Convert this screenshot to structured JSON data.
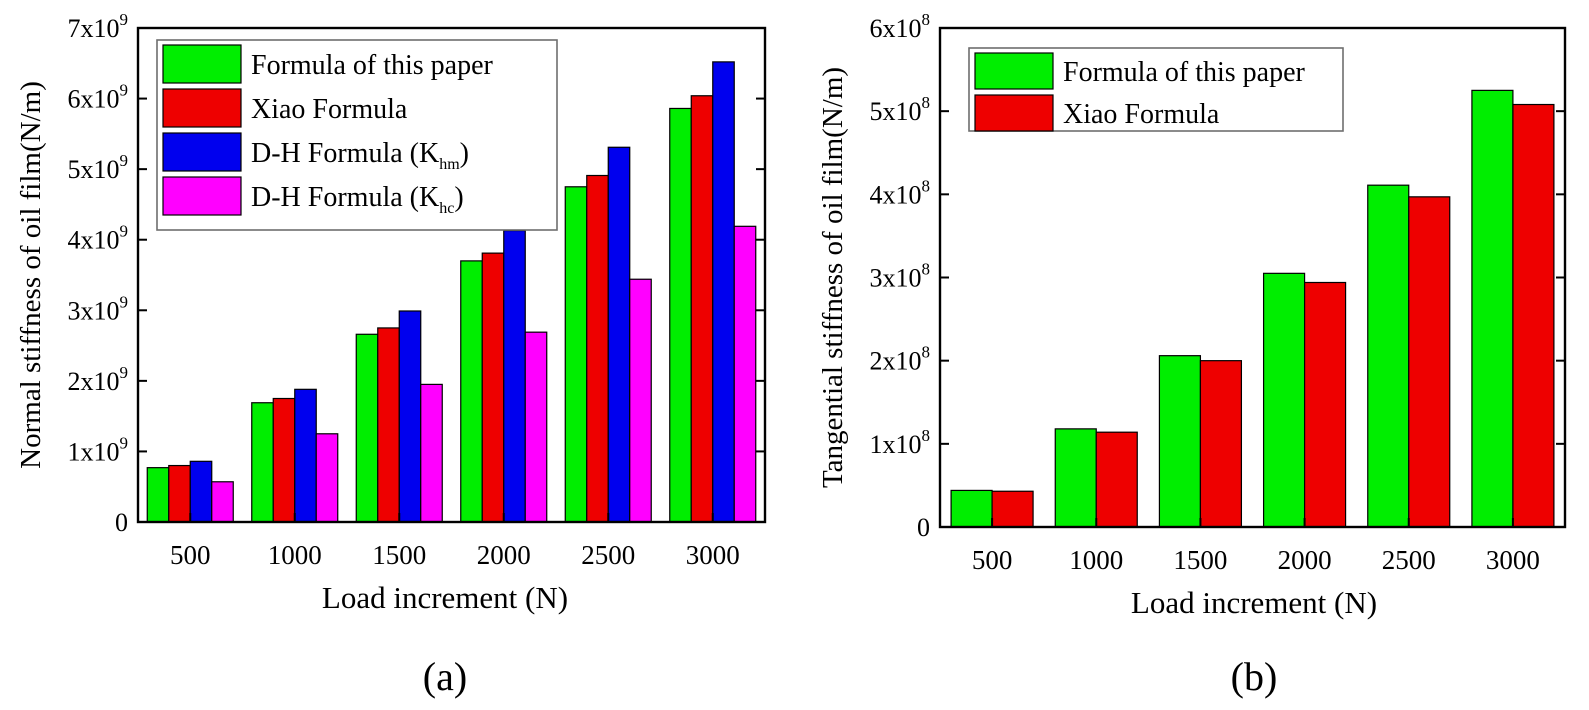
{
  "chart_data": [
    {
      "id": "a",
      "type": "bar",
      "panel_label": "(a)",
      "xlabel": "Load increment (N)",
      "ylabel": "Normal stiffness of oil film(N/m)",
      "categories": [
        "500",
        "1000",
        "1500",
        "2000",
        "2500",
        "3000"
      ],
      "ylim": [
        0,
        7000000000
      ],
      "yticks": [
        {
          "value": 0,
          "mantissa": "0",
          "exp": ""
        },
        {
          "value": 1000000000,
          "mantissa": "1x10",
          "exp": "9"
        },
        {
          "value": 2000000000,
          "mantissa": "2x10",
          "exp": "9"
        },
        {
          "value": 3000000000,
          "mantissa": "3x10",
          "exp": "9"
        },
        {
          "value": 4000000000,
          "mantissa": "4x10",
          "exp": "9"
        },
        {
          "value": 5000000000,
          "mantissa": "5x10",
          "exp": "9"
        },
        {
          "value": 6000000000,
          "mantissa": "6x10",
          "exp": "9"
        },
        {
          "value": 7000000000,
          "mantissa": "7x10",
          "exp": "9"
        }
      ],
      "series": [
        {
          "name": "Formula of this paper",
          "label_main": "Formula of this paper",
          "label_sub": "",
          "label_end": "",
          "color": "#00ee00",
          "values": [
            770000000,
            1690000000,
            2660000000,
            3700000000,
            4750000000,
            5860000000
          ]
        },
        {
          "name": "Xiao Formula",
          "label_main": "Xiao Formula",
          "label_sub": "",
          "label_end": "",
          "color": "#ee0000",
          "values": [
            800000000,
            1750000000,
            2750000000,
            3810000000,
            4910000000,
            6040000000
          ]
        },
        {
          "name": "D-H Formula (Khm)",
          "label_main": "D-H Formula (K",
          "label_sub": "hm",
          "label_end": ")",
          "color": "#0000ee",
          "values": [
            860000000,
            1880000000,
            2990000000,
            4130000000,
            5310000000,
            6520000000
          ]
        },
        {
          "name": "D-H Formula (Khc)",
          "label_main": "D-H Formula (K",
          "label_sub": "hc",
          "label_end": ")",
          "color": "#ff00ff",
          "values": [
            570000000,
            1250000000,
            1950000000,
            2690000000,
            3440000000,
            4190000000
          ]
        }
      ]
    },
    {
      "id": "b",
      "type": "bar",
      "panel_label": "(b)",
      "xlabel": "Load increment (N)",
      "ylabel": "Tangential stiffness of oil film(N/m)",
      "categories": [
        "500",
        "1000",
        "1500",
        "2000",
        "2500",
        "3000"
      ],
      "ylim": [
        0,
        600000000
      ],
      "yticks": [
        {
          "value": 0,
          "mantissa": "0",
          "exp": ""
        },
        {
          "value": 100000000,
          "mantissa": "1x10",
          "exp": "8"
        },
        {
          "value": 200000000,
          "mantissa": "2x10",
          "exp": "8"
        },
        {
          "value": 300000000,
          "mantissa": "3x10",
          "exp": "8"
        },
        {
          "value": 400000000,
          "mantissa": "4x10",
          "exp": "8"
        },
        {
          "value": 500000000,
          "mantissa": "5x10",
          "exp": "8"
        },
        {
          "value": 600000000,
          "mantissa": "6x10",
          "exp": "8"
        }
      ],
      "series": [
        {
          "name": "Formula of this paper",
          "label_main": "Formula of this paper",
          "label_sub": "",
          "label_end": "",
          "color": "#00ee00",
          "values": [
            44000000,
            118000000,
            206000000,
            305000000,
            411000000,
            525000000
          ]
        },
        {
          "name": "Xiao Formula",
          "label_main": "Xiao Formula",
          "label_sub": "",
          "label_end": "",
          "color": "#ee0000",
          "values": [
            43000000,
            114000000,
            200000000,
            294000000,
            397000000,
            508000000
          ]
        }
      ]
    }
  ]
}
